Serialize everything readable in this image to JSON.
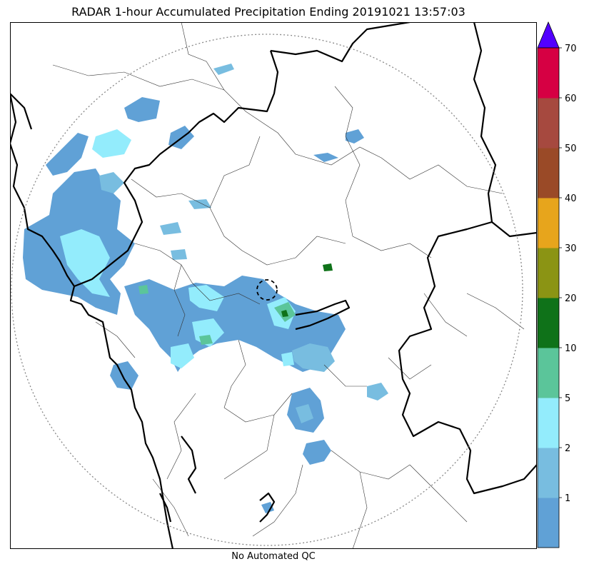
{
  "title": "RADAR 1-hour Accumulated Precipitation Ending 20191021 13:57:03",
  "footer": "No Automated QC",
  "colorbar": {
    "levels": [
      {
        "from": 0,
        "to": 1,
        "color": "#60a1d6"
      },
      {
        "from": 1,
        "to": 2,
        "color": "#78bde0"
      },
      {
        "from": 2,
        "to": 5,
        "color": "#93ecfc"
      },
      {
        "from": 5,
        "to": 10,
        "color": "#5bc59a"
      },
      {
        "from": 10,
        "to": 20,
        "color": "#0f7219"
      },
      {
        "from": 20,
        "to": 30,
        "color": "#8b9414"
      },
      {
        "from": 30,
        "to": 40,
        "color": "#e7a51c"
      },
      {
        "from": 40,
        "to": 50,
        "color": "#9a4a27"
      },
      {
        "from": 50,
        "to": 60,
        "color": "#a6493f"
      },
      {
        "from": 60,
        "to": 70,
        "color": "#d60043"
      }
    ],
    "tick_labels": [
      "1",
      "2",
      "5",
      "10",
      "20",
      "30",
      "40",
      "50",
      "60",
      "70"
    ],
    "extend_max_color": "#5200ff"
  }
}
